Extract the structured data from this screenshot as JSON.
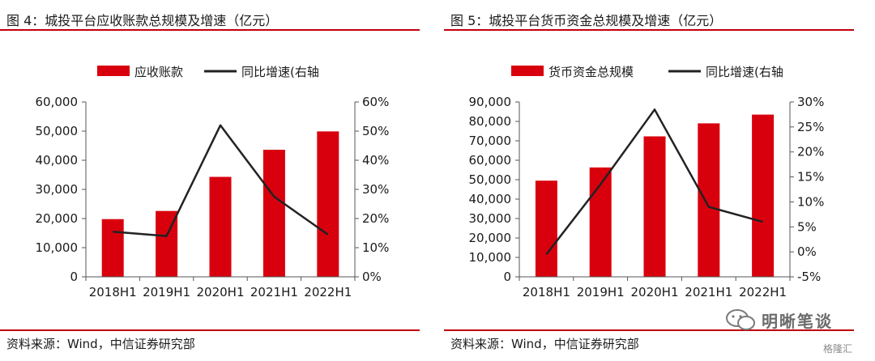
{
  "left": {
    "figure_title": "图 4：城投平台应收账款总规模及增速（亿元）",
    "source": "资料来源：Wind，中信证券研究部"
  },
  "right": {
    "figure_title": "图 5：城投平台货币资金总规模及增速（亿元）",
    "source": "资料来源：Wind，中信证券研究部"
  },
  "watermark": {
    "text": "明晰笔谈",
    "logo_text": "格隆汇"
  },
  "colors": {
    "bar": "#d9000d",
    "line": "#222222",
    "rule": "#c0000b"
  },
  "chart_data": [
    {
      "type": "bar",
      "categories": [
        "2018H1",
        "2019H1",
        "2020H1",
        "2021H1",
        "2022H1"
      ],
      "series": [
        {
          "name": "应收账款",
          "type": "bar",
          "axis": "left",
          "values": [
            19800,
            22600,
            34300,
            43600,
            49900
          ]
        },
        {
          "name": "同比增速(右轴",
          "type": "line",
          "axis": "right",
          "values": [
            15.5,
            14,
            52,
            27.5,
            14.5
          ]
        }
      ],
      "y_left": {
        "min": 0,
        "max": 60000,
        "step": 10000,
        "ticks": [
          "0",
          "10,000",
          "20,000",
          "30,000",
          "40,000",
          "50,000",
          "60,000"
        ]
      },
      "y_right": {
        "min": 0,
        "max": 60,
        "step": 10,
        "ticks": [
          "0%",
          "10%",
          "20%",
          "30%",
          "40%",
          "50%",
          "60%"
        ]
      },
      "legend_position": "top",
      "grid": false
    },
    {
      "type": "bar",
      "categories": [
        "2018H1",
        "2019H1",
        "2020H1",
        "2021H1",
        "2022H1"
      ],
      "series": [
        {
          "name": "货币资金总规模",
          "type": "bar",
          "axis": "left",
          "values": [
            49500,
            56300,
            72300,
            79000,
            83500
          ]
        },
        {
          "name": "同比增速(右轴",
          "type": "line",
          "axis": "right",
          "values": [
            -0.5,
            13.5,
            28.5,
            9,
            6
          ]
        }
      ],
      "y_left": {
        "min": 0,
        "max": 90000,
        "step": 10000,
        "ticks": [
          "0",
          "10,000",
          "20,000",
          "30,000",
          "40,000",
          "50,000",
          "60,000",
          "70,000",
          "80,000",
          "90,000"
        ]
      },
      "y_right": {
        "min": -5,
        "max": 30,
        "step": 5,
        "ticks": [
          "-5%",
          "0%",
          "5%",
          "10%",
          "15%",
          "20%",
          "25%",
          "30%"
        ]
      },
      "legend_position": "top",
      "grid": false
    }
  ]
}
